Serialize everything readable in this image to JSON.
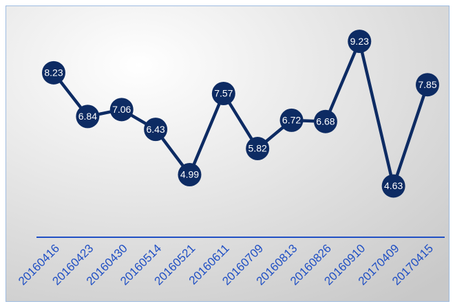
{
  "chart_data": {
    "type": "line",
    "categories": [
      "20160416",
      "20160423",
      "20160430",
      "20160514",
      "20160521",
      "20160611",
      "20160709",
      "20160813",
      "20160826",
      "20160910",
      "20170409",
      "20170415"
    ],
    "values": [
      8.23,
      6.84,
      7.06,
      6.43,
      4.99,
      7.57,
      5.82,
      6.72,
      6.68,
      9.23,
      4.63,
      7.85
    ],
    "color": "#0d2b63",
    "ylim": [
      3,
      10.5
    ]
  }
}
